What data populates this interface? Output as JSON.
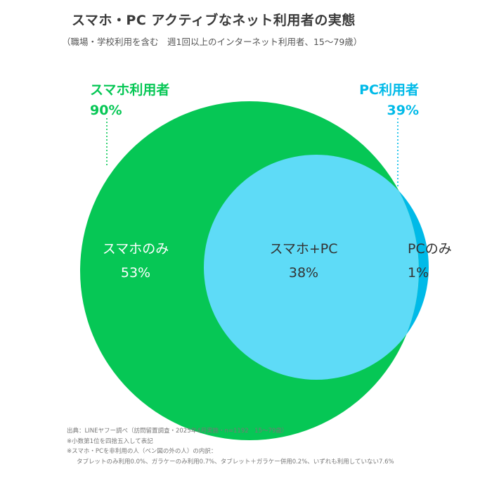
{
  "title": "スマホ・PC アクティブなネット利用者の実態",
  "subtitle": "（職場・学校利用を含む　週1回以上のインターネット利用者、15～79歳）",
  "colors": {
    "smartphone": "#06C755",
    "pc": "#00BAE8",
    "overlap": "#5EDBF7",
    "label_dark": "#333333",
    "label_light": "#ffffff"
  },
  "chart_data": {
    "type": "venn",
    "sets": [
      {
        "id": "smartphone",
        "label": "スマホ利用者",
        "value": "90%",
        "percent": 90
      },
      {
        "id": "pc",
        "label": "PC利用者",
        "value": "39%",
        "percent": 39
      }
    ],
    "regions": [
      {
        "id": "smartphone_only",
        "label": "スマホのみ",
        "value": "53%",
        "percent": 53
      },
      {
        "id": "both",
        "label": "スマホ+PC",
        "value": "38%",
        "percent": 38
      },
      {
        "id": "pc_only",
        "label": "PCのみ",
        "value": "1%",
        "percent": 1
      }
    ]
  },
  "notes": [
    "出典：LINEヤフー調べ（訪問留置調査・2025年4月実施・n=1192　15～79歳）",
    "※小数第1位を四捨五入して表記",
    "※スマホ・PCを非利用の人（ベン図の外の人）の内訳：",
    "タブレットのみ利用0.0%、ガラケーのみ利用0.7%、タブレット＋ガラケー併用0.2%、いずれも利用していない7.6%"
  ]
}
